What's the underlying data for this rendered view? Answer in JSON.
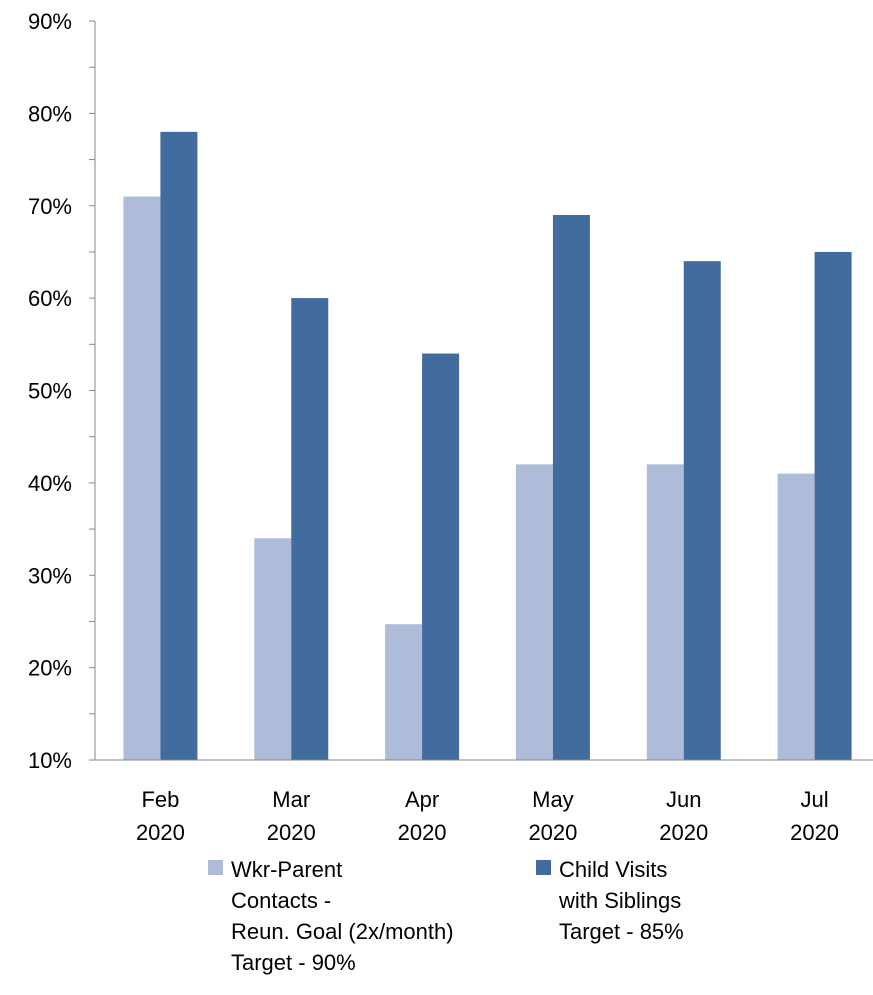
{
  "chart_data": {
    "type": "bar",
    "categories": [
      [
        "Feb",
        "2020"
      ],
      [
        "Mar",
        "2020"
      ],
      [
        "Apr",
        "2020"
      ],
      [
        "May",
        "2020"
      ],
      [
        "Jun",
        "2020"
      ],
      [
        "Jul",
        "2020"
      ]
    ],
    "series": [
      {
        "name": "Wkr-Parent Contacts - Reun. Goal (2x/month) Target - 90%",
        "legend_lines": [
          "Wkr-Parent",
          "Contacts  -",
          "Reun. Goal (2x/month)",
          "Target - 90%"
        ],
        "color": "#AEBCD9",
        "values": [
          71,
          34,
          24.7,
          42,
          42,
          41
        ]
      },
      {
        "name": "Child Visits with Siblings Target - 85%",
        "legend_lines": [
          "Child Visits",
          "with Siblings",
          "Target - 85%"
        ],
        "color": "#426B9E",
        "values": [
          78,
          60,
          54,
          69,
          64,
          65
        ]
      }
    ],
    "ylim": [
      10,
      90
    ],
    "y_ticks": [
      10,
      20,
      30,
      40,
      50,
      60,
      70,
      80,
      90
    ],
    "y_tick_labels": [
      "10%",
      "20%",
      "30%",
      "40%",
      "50%",
      "60%",
      "70%",
      "80%",
      "90%"
    ],
    "title": "",
    "xlabel": "",
    "ylabel": "",
    "grid": false,
    "legend_position": "bottom"
  }
}
